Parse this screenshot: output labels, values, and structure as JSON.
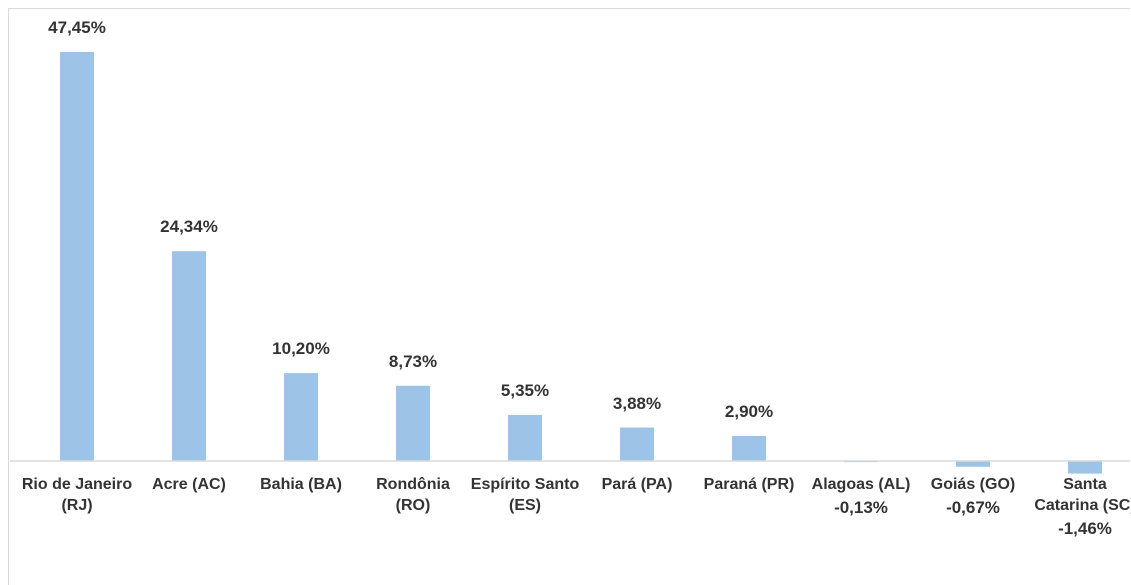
{
  "chart_data": {
    "type": "bar",
    "categories": [
      "Rio de Janeiro (RJ)",
      "Acre (AC)",
      "Bahia (BA)",
      "Rondônia (RO)",
      "Espírito Santo (ES)",
      "Pará (PA)",
      "Paraná (PR)",
      "Alagoas (AL)",
      "Goiás (GO)",
      "Santa Catarina (SC)"
    ],
    "values": [
      47.45,
      24.34,
      10.2,
      8.73,
      5.35,
      3.88,
      2.9,
      -0.13,
      -0.67,
      -1.46
    ],
    "value_labels": [
      "47,45%",
      "24,34%",
      "10,20%",
      "8,73%",
      "5,35%",
      "3,88%",
      "2,90%",
      "-0,13%",
      "-0,67%",
      "-1,46%"
    ],
    "color": "#9dc3e6"
  }
}
